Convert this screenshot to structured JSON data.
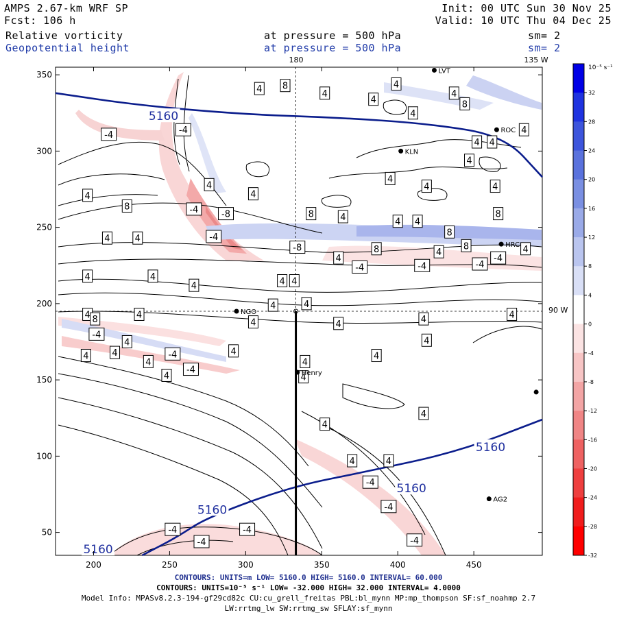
{
  "header": {
    "model": "AMPS 2.67-km WRF SP",
    "fcst": "Fcst: 106 h",
    "init": "Init: 00 UTC Sun 30 Nov 25",
    "valid": "Valid: 10 UTC Thu 04 Dec 25",
    "field1": "Relative vorticity",
    "field2": "Geopotential height",
    "pressure1": "at pressure = 500 hPa",
    "pressure2": "at pressure = 500 hPa",
    "sm1": "sm= 2",
    "sm2": "sm= 2"
  },
  "map_labels": {
    "top_180": "180",
    "top_135w": "135 W",
    "right_90w": "90 W"
  },
  "colorbar": {
    "unit": "10⁻⁵ s⁻¹",
    "ticks": [
      "32",
      "28",
      "24",
      "20",
      "16",
      "12",
      "8",
      "4",
      "0",
      "-4",
      "-8",
      "-12",
      "-16",
      "-20",
      "-24",
      "-28",
      "-32"
    ],
    "colors": [
      "#0000e6",
      "#1f33e0",
      "#3d55dc",
      "#5a72dd",
      "#7a8fe2",
      "#9aaae8",
      "#bac5ef",
      "#d9dff6",
      "#ffffff",
      "#fbe3e3",
      "#f7c5c5",
      "#f3a5a5",
      "#f08585",
      "#ee6262",
      "#ee3f3f",
      "#f01d1d",
      "#ff0000"
    ]
  },
  "stations": [
    {
      "name": "LVT",
      "x": 424,
      "y": 353
    },
    {
      "name": "ROC",
      "x": 465,
      "y": 314
    },
    {
      "name": "KLN",
      "x": 402,
      "y": 300
    },
    {
      "name": "HRC",
      "x": 468,
      "y": 239
    },
    {
      "name": "NGO",
      "x": 294,
      "y": 195
    },
    {
      "name": "Henry",
      "x": 334,
      "y": 155
    },
    {
      "name": "AG2",
      "x": 460,
      "y": 72
    },
    {
      "name": "",
      "x": 491,
      "y": 142
    }
  ],
  "footer": {
    "line1": "CONTOURS: UNITS=m LOW= 5160.0 HIGH= 5160.0 INTERVAL= 60.000",
    "line2": "CONTOURS: UNITS=10⁻⁵ s⁻¹ LOW= -32.000 HIGH= 32.000 INTERVAL= 4.0000",
    "line3": "Model Info: MPASv8.2.3-194-gf29cd82c CU:cu_grell_freitas PBL:bl_mynn MP:mp_thompson SF:sf_noahmp 2.7",
    "line4": "LW:rrtmg_lw SW:rrtmg_sw SFLAY:sf_mynn"
  },
  "chart_data": {
    "type": "contour_map",
    "xlim": [
      175,
      495
    ],
    "ylim": [
      35,
      355
    ],
    "x_ticks": [
      200,
      250,
      300,
      350,
      400,
      450
    ],
    "y_ticks": [
      50,
      100,
      150,
      200,
      250,
      300,
      350
    ],
    "x_tick_labels": [
      "200",
      "250",
      "300",
      "350",
      "400",
      "450"
    ],
    "y_tick_labels": [
      "50",
      "100",
      "150",
      "200",
      "250",
      "300",
      "350"
    ],
    "height_contour_label": "5160",
    "height_contours": [
      [
        [
          175,
          338
        ],
        [
          230,
          330
        ],
        [
          300,
          324
        ],
        [
          360,
          322
        ],
        [
          420,
          318
        ],
        [
          470,
          310
        ],
        [
          495,
          283
        ]
      ],
      [
        [
          232,
          35
        ],
        [
          255,
          47
        ],
        [
          275,
          60
        ],
        [
          330,
          80
        ],
        [
          380,
          90
        ],
        [
          440,
          103
        ],
        [
          495,
          124
        ]
      ]
    ],
    "height_contour_labels": [
      {
        "x": 246,
        "y": 323
      },
      {
        "x": 409,
        "y": 79
      },
      {
        "x": 278,
        "y": 65
      },
      {
        "x": 203,
        "y": 39
      },
      {
        "x": 461,
        "y": 106
      }
    ],
    "cross_section": {
      "x": [
        333,
        333
      ],
      "y": [
        35,
        195
      ]
    },
    "guide_lines": {
      "x": 333,
      "y": 195
    },
    "vorticity_labels": [
      {
        "t": "4",
        "x": 309,
        "y": 341
      },
      {
        "t": "8",
        "x": 326,
        "y": 343
      },
      {
        "t": "4",
        "x": 399,
        "y": 344
      },
      {
        "t": "4",
        "x": 352,
        "y": 338
      },
      {
        "t": "4",
        "x": 384,
        "y": 334
      },
      {
        "t": "4",
        "x": 410,
        "y": 325
      },
      {
        "t": "4",
        "x": 437,
        "y": 338
      },
      {
        "t": "8",
        "x": 444,
        "y": 331
      },
      {
        "t": "-4",
        "x": 210,
        "y": 311
      },
      {
        "t": "-4",
        "x": 259,
        "y": 314
      },
      {
        "t": "4",
        "x": 452,
        "y": 306
      },
      {
        "t": "4",
        "x": 462,
        "y": 306
      },
      {
        "t": "4",
        "x": 447,
        "y": 294
      },
      {
        "t": "4",
        "x": 483,
        "y": 314
      },
      {
        "t": "4",
        "x": 395,
        "y": 282
      },
      {
        "t": "4",
        "x": 419,
        "y": 277
      },
      {
        "t": "4",
        "x": 464,
        "y": 277
      },
      {
        "t": "4",
        "x": 276,
        "y": 278
      },
      {
        "t": "4",
        "x": 305,
        "y": 272
      },
      {
        "t": "4",
        "x": 196,
        "y": 271
      },
      {
        "t": "8",
        "x": 222,
        "y": 264
      },
      {
        "t": "-4",
        "x": 266,
        "y": 262
      },
      {
        "t": "-8",
        "x": 287,
        "y": 259
      },
      {
        "t": "8",
        "x": 343,
        "y": 259
      },
      {
        "t": "4",
        "x": 364,
        "y": 257
      },
      {
        "t": "4",
        "x": 413,
        "y": 254
      },
      {
        "t": "4",
        "x": 400,
        "y": 254
      },
      {
        "t": "8",
        "x": 466,
        "y": 259
      },
      {
        "t": "8",
        "x": 434,
        "y": 247
      },
      {
        "t": "8",
        "x": 445,
        "y": 238
      },
      {
        "t": "4",
        "x": 427,
        "y": 234
      },
      {
        "t": "4",
        "x": 484,
        "y": 236
      },
      {
        "t": "-4",
        "x": 279,
        "y": 244
      },
      {
        "t": "-8",
        "x": 334,
        "y": 237
      },
      {
        "t": "4",
        "x": 209,
        "y": 243
      },
      {
        "t": "4",
        "x": 229,
        "y": 243
      },
      {
        "t": "8",
        "x": 386,
        "y": 236
      },
      {
        "t": "4",
        "x": 361,
        "y": 230
      },
      {
        "t": "-4",
        "x": 466,
        "y": 230
      },
      {
        "t": "-4",
        "x": 454,
        "y": 226
      },
      {
        "t": "-4",
        "x": 416,
        "y": 225
      },
      {
        "t": "-4",
        "x": 375,
        "y": 224
      },
      {
        "t": "4",
        "x": 196,
        "y": 218
      },
      {
        "t": "4",
        "x": 239,
        "y": 218
      },
      {
        "t": "4",
        "x": 266,
        "y": 212
      },
      {
        "t": "4",
        "x": 324,
        "y": 215
      },
      {
        "t": "4",
        "x": 332,
        "y": 215
      },
      {
        "t": "4",
        "x": 340,
        "y": 200
      },
      {
        "t": "4",
        "x": 318,
        "y": 199
      },
      {
        "t": "4",
        "x": 196,
        "y": 193
      },
      {
        "t": "8",
        "x": 201,
        "y": 190
      },
      {
        "t": "4",
        "x": 230,
        "y": 193
      },
      {
        "t": "4",
        "x": 305,
        "y": 188
      },
      {
        "t": "4",
        "x": 361,
        "y": 187
      },
      {
        "t": "4",
        "x": 417,
        "y": 190
      },
      {
        "t": "4",
        "x": 475,
        "y": 193
      },
      {
        "t": "-4",
        "x": 202,
        "y": 180
      },
      {
        "t": "4",
        "x": 222,
        "y": 175
      },
      {
        "t": "-4",
        "x": 252,
        "y": 167
      },
      {
        "t": "4",
        "x": 292,
        "y": 169
      },
      {
        "t": "4",
        "x": 195,
        "y": 166
      },
      {
        "t": "4",
        "x": 214,
        "y": 168
      },
      {
        "t": "4",
        "x": 236,
        "y": 162
      },
      {
        "t": "-4",
        "x": 264,
        "y": 157
      },
      {
        "t": "4",
        "x": 339,
        "y": 162
      },
      {
        "t": "4",
        "x": 386,
        "y": 166
      },
      {
        "t": "4",
        "x": 419,
        "y": 176
      },
      {
        "t": "4",
        "x": 338,
        "y": 152
      },
      {
        "t": "4",
        "x": 248,
        "y": 153
      },
      {
        "t": "4",
        "x": 417,
        "y": 128
      },
      {
        "t": "4",
        "x": 352,
        "y": 121
      },
      {
        "t": "4",
        "x": 370,
        "y": 97
      },
      {
        "t": "4",
        "x": 394,
        "y": 97
      },
      {
        "t": "-4",
        "x": 382,
        "y": 83
      },
      {
        "t": "-4",
        "x": 394,
        "y": 67
      },
      {
        "t": "-4",
        "x": 252,
        "y": 52
      },
      {
        "t": "-4",
        "x": 301,
        "y": 52
      },
      {
        "t": "-4",
        "x": 271,
        "y": 44
      },
      {
        "t": "-4",
        "x": 411,
        "y": 45
      }
    ]
  }
}
